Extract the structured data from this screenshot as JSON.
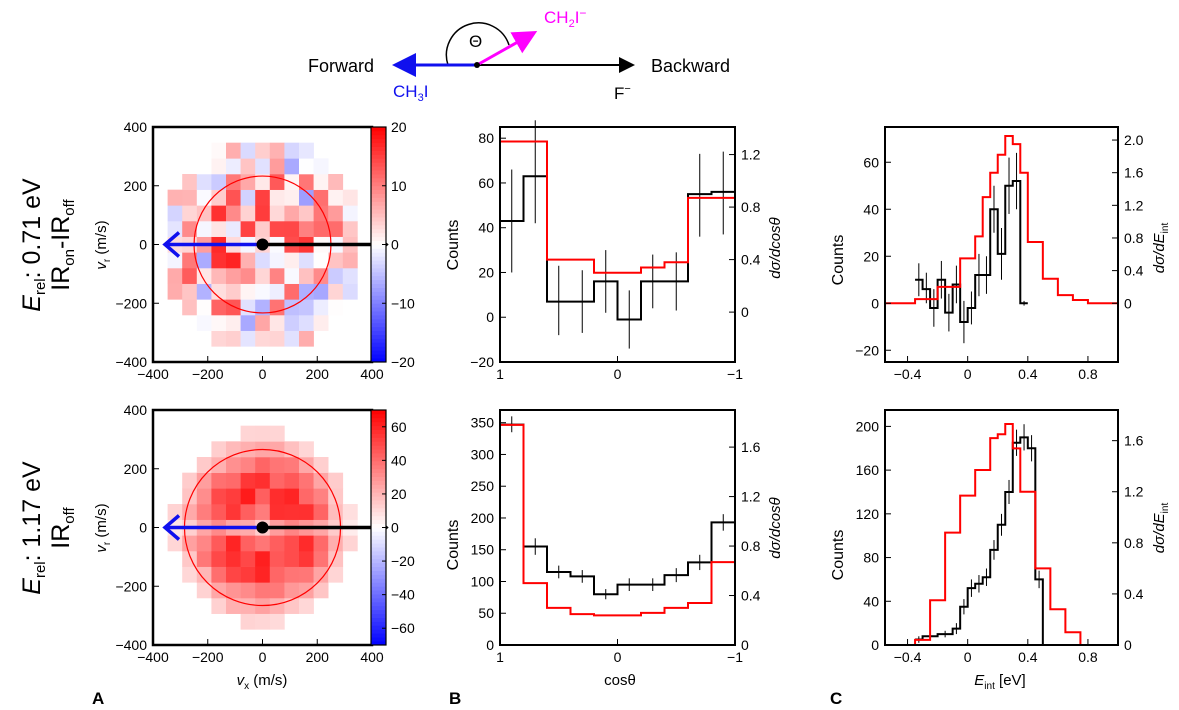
{
  "diagram": {
    "forward": "Forward",
    "backward": "Backward",
    "theta": "Θ",
    "ch3i": [
      "CH",
      "3",
      "I"
    ],
    "ch2i": [
      "CH",
      "2",
      "I",
      "−"
    ],
    "f": [
      "F",
      "−"
    ],
    "colors": {
      "blue": "#1010ee",
      "magenta": "#ff00ff",
      "black": "#000000"
    }
  },
  "row_labels": [
    {
      "energy": [
        "E",
        "rel",
        ": 0.71 eV"
      ],
      "condition": [
        "IR",
        "on",
        "-IR",
        "off"
      ]
    },
    {
      "energy": [
        "E",
        "rel",
        ": 1.17 eV"
      ],
      "condition": [
        "IR",
        "off"
      ]
    }
  ],
  "panel_labels": [
    "A",
    "B",
    "C"
  ],
  "axis_text": {
    "vx": [
      "v",
      "x",
      " (m/s)"
    ],
    "vr": [
      "v",
      "r",
      " (m/s)"
    ],
    "counts": "Counts",
    "dsigma_dcos": "dσ/dcosθ",
    "costheta": "cosθ",
    "dsigma_dE": [
      "dσ/dE",
      "int"
    ],
    "eint": [
      "E",
      "int",
      " [eV]"
    ]
  },
  "chart_data": [
    {
      "type": "heatmap",
      "id": "A-top",
      "title": "",
      "x_range": [
        -400,
        400
      ],
      "y_range": [
        -400,
        400
      ],
      "x_ticks": [
        -400,
        -200,
        0,
        200,
        400
      ],
      "y_ticks": [
        -400,
        -200,
        0,
        200,
        400
      ],
      "colorbar": {
        "range": [
          -20,
          20
        ],
        "ticks": [
          20,
          10,
          0,
          -10,
          -20
        ],
        "scale": "blue-white-red"
      },
      "circle_radius": 250,
      "arrows": {
        "forward_color": "#1010ee",
        "backward_color": "#000000"
      }
    },
    {
      "type": "heatmap",
      "id": "A-bottom",
      "title": "",
      "x_range": [
        -400,
        400
      ],
      "y_range": [
        -400,
        400
      ],
      "x_ticks": [
        -400,
        -200,
        0,
        200,
        400
      ],
      "y_ticks": [
        -400,
        -200,
        0,
        200,
        400
      ],
      "colorbar": {
        "range": [
          -70,
          70
        ],
        "ticks": [
          60,
          40,
          20,
          0,
          -20,
          -40,
          -60
        ],
        "scale": "blue-white-red"
      },
      "circle_radius": 285,
      "arrows": {
        "forward_color": "#1010ee",
        "backward_color": "#000000"
      }
    },
    {
      "type": "line",
      "id": "B-top",
      "step": true,
      "x_reversed": true,
      "x_range": [
        1,
        -1
      ],
      "y_range": [
        -20,
        85
      ],
      "x_ticks": [
        1,
        0,
        -1
      ],
      "y_ticks": [
        80,
        60,
        40,
        20,
        0,
        -20
      ],
      "right_range": [
        -0.38,
        1.41
      ],
      "right_ticks": [
        0,
        0.4,
        0.8,
        1.2
      ],
      "series": [
        {
          "color": "#000000",
          "bins": [
            [
              1,
              0.8,
              43
            ],
            [
              0.8,
              0.6,
              63
            ],
            [
              0.6,
              0.4,
              7
            ],
            [
              0.4,
              0.2,
              7
            ],
            [
              0.2,
              0,
              16
            ],
            [
              0,
              -0.2,
              -1
            ],
            [
              -0.2,
              -0.4,
              16
            ],
            [
              -0.4,
              -0.6,
              16
            ],
            [
              -0.6,
              -0.8,
              55
            ],
            [
              -0.8,
              -1,
              56
            ]
          ],
          "errors": [
            [
              0.9,
              20,
              66
            ],
            [
              0.7,
              42,
              88
            ],
            [
              0.5,
              -8,
              23
            ],
            [
              0.3,
              -7,
              21
            ],
            [
              0.1,
              2,
              30
            ],
            [
              -0.1,
              -14,
              12
            ],
            [
              -0.3,
              4,
              28
            ],
            [
              -0.5,
              3,
              29
            ],
            [
              -0.7,
              36,
              73
            ],
            [
              -0.9,
              37,
              74
            ]
          ]
        },
        {
          "color": "#ff0000",
          "axis": "right",
          "bins": [
            [
              1,
              0.8,
              1.3
            ],
            [
              0.8,
              0.6,
              1.3
            ],
            [
              0.6,
              0.4,
              0.4
            ],
            [
              0.4,
              0.2,
              0.4
            ],
            [
              0.2,
              0,
              0.3
            ],
            [
              0,
              -0.2,
              0.3
            ],
            [
              -0.2,
              -0.4,
              0.34
            ],
            [
              -0.4,
              -0.6,
              0.38
            ],
            [
              -0.6,
              -0.8,
              0.87
            ],
            [
              -0.8,
              -1,
              0.87
            ]
          ]
        }
      ]
    },
    {
      "type": "line",
      "id": "B-bottom",
      "step": true,
      "x_reversed": true,
      "x_range": [
        1,
        -1
      ],
      "y_range": [
        0,
        370
      ],
      "x_ticks": [
        1,
        0,
        -1
      ],
      "y_ticks": [
        350,
        300,
        250,
        200,
        150,
        100,
        50,
        0
      ],
      "right_range": [
        0,
        1.9
      ],
      "right_ticks": [
        0,
        0.4,
        0.8,
        1.2,
        1.6
      ],
      "series": [
        {
          "color": "#000000",
          "bins": [
            [
              1,
              0.8,
              347
            ],
            [
              0.8,
              0.6,
              155
            ],
            [
              0.6,
              0.4,
              115
            ],
            [
              0.4,
              0.2,
              108
            ],
            [
              0.2,
              0,
              80
            ],
            [
              0,
              -0.2,
              95
            ],
            [
              -0.2,
              -0.4,
              95
            ],
            [
              -0.4,
              -0.6,
              110
            ],
            [
              -0.6,
              -0.8,
              130
            ],
            [
              -0.8,
              -1,
              193
            ]
          ],
          "errors": [
            [
              0.9,
              335,
              360
            ],
            [
              0.7,
              142,
              168
            ],
            [
              0.5,
              105,
              125
            ],
            [
              0.3,
              98,
              118
            ],
            [
              0.1,
              72,
              88
            ],
            [
              -0.1,
              85,
              105
            ],
            [
              -0.3,
              85,
              105
            ],
            [
              -0.5,
              99,
              121
            ],
            [
              -0.7,
              118,
              142
            ],
            [
              -0.9,
              180,
              206
            ]
          ]
        },
        {
          "color": "#ff0000",
          "axis": "right",
          "bins": [
            [
              1,
              0.8,
              1.78
            ],
            [
              0.8,
              0.6,
              0.5
            ],
            [
              0.6,
              0.4,
              0.3
            ],
            [
              0.4,
              0.2,
              0.25
            ],
            [
              0.2,
              0,
              0.24
            ],
            [
              0,
              -0.2,
              0.24
            ],
            [
              -0.2,
              -0.4,
              0.26
            ],
            [
              -0.4,
              -0.6,
              0.3
            ],
            [
              -0.6,
              -0.8,
              0.34
            ],
            [
              -0.8,
              -1,
              0.67
            ]
          ]
        }
      ]
    },
    {
      "type": "line",
      "id": "C-top",
      "step": true,
      "x_range": [
        -0.55,
        1
      ],
      "y_range": [
        -25,
        75
      ],
      "x_ticks": [
        -0.4,
        0,
        0.4,
        0.8
      ],
      "y_ticks": [
        60,
        40,
        20,
        0,
        -20
      ],
      "right_range": [
        -0.72,
        2.16
      ],
      "right_ticks": [
        0,
        0.4,
        0.8,
        1.2,
        1.6,
        2.0
      ],
      "series": [
        {
          "color": "#000000",
          "bins": [
            [
              -0.35,
              -0.3,
              10
            ],
            [
              -0.3,
              -0.25,
              6
            ],
            [
              -0.25,
              -0.2,
              -2
            ],
            [
              -0.2,
              -0.15,
              10
            ],
            [
              -0.15,
              -0.1,
              -4
            ],
            [
              -0.1,
              -0.05,
              8
            ],
            [
              -0.05,
              0,
              -8
            ],
            [
              0,
              0.05,
              -2
            ],
            [
              0.05,
              0.1,
              12
            ],
            [
              0.1,
              0.15,
              12
            ],
            [
              0.15,
              0.2,
              40
            ],
            [
              0.2,
              0.25,
              21
            ],
            [
              0.25,
              0.3,
              50
            ],
            [
              0.3,
              0.35,
              52
            ],
            [
              0.35,
              0.4,
              0
            ]
          ],
          "errors": [
            [
              -0.325,
              3,
              17
            ],
            [
              -0.275,
              0,
              13
            ],
            [
              -0.225,
              -10,
              6
            ],
            [
              -0.175,
              2,
              18
            ],
            [
              -0.125,
              -12,
              4
            ],
            [
              -0.075,
              0,
              16
            ],
            [
              -0.025,
              -17,
              1
            ],
            [
              0.025,
              -9,
              5
            ],
            [
              0.075,
              3,
              21
            ],
            [
              0.125,
              4,
              20
            ],
            [
              0.175,
              30,
              50
            ],
            [
              0.225,
              10,
              32
            ],
            [
              0.275,
              38,
              62
            ],
            [
              0.325,
              40,
              64
            ],
            [
              0.375,
              -1,
              1
            ]
          ]
        },
        {
          "color": "#ff0000",
          "axis": "right",
          "bins": [
            [
              -0.55,
              -0.35,
              0
            ],
            [
              -0.35,
              -0.2,
              0.05
            ],
            [
              -0.2,
              -0.05,
              0.2
            ],
            [
              -0.05,
              0.05,
              0.55
            ],
            [
              0.05,
              0.1,
              0.82
            ],
            [
              0.1,
              0.15,
              1.3
            ],
            [
              0.15,
              0.2,
              1.6
            ],
            [
              0.2,
              0.25,
              1.82
            ],
            [
              0.25,
              0.3,
              2.05
            ],
            [
              0.3,
              0.35,
              1.95
            ],
            [
              0.35,
              0.4,
              1.6
            ],
            [
              0.4,
              0.5,
              0.75
            ],
            [
              0.5,
              0.6,
              0.3
            ],
            [
              0.6,
              0.7,
              0.1
            ],
            [
              0.7,
              0.8,
              0.04
            ],
            [
              0.8,
              1,
              0
            ]
          ]
        }
      ]
    },
    {
      "type": "line",
      "id": "C-bottom",
      "step": true,
      "x_range": [
        -0.55,
        1
      ],
      "y_range": [
        0,
        215
      ],
      "x_ticks": [
        -0.4,
        0,
        0.4,
        0.8
      ],
      "y_ticks": [
        200,
        160,
        120,
        80,
        40,
        0
      ],
      "right_range": [
        0,
        1.84
      ],
      "right_ticks": [
        0,
        0.4,
        0.8,
        1.2,
        1.6
      ],
      "series": [
        {
          "color": "#000000",
          "bins": [
            [
              -0.35,
              -0.3,
              5
            ],
            [
              -0.3,
              -0.2,
              8
            ],
            [
              -0.2,
              -0.1,
              10
            ],
            [
              -0.1,
              -0.05,
              15
            ],
            [
              -0.05,
              0,
              35
            ],
            [
              0,
              0.05,
              52
            ],
            [
              0.05,
              0.1,
              56
            ],
            [
              0.1,
              0.15,
              62
            ],
            [
              0.15,
              0.2,
              87
            ],
            [
              0.2,
              0.25,
              110
            ],
            [
              0.25,
              0.3,
              140
            ],
            [
              0.3,
              0.35,
              185
            ],
            [
              0.35,
              0.4,
              190
            ],
            [
              0.4,
              0.45,
              180
            ],
            [
              0.45,
              0.5,
              60
            ],
            [
              0.5,
              0.55,
              0
            ]
          ],
          "errors": [
            [
              -0.325,
              2,
              8
            ],
            [
              -0.25,
              5,
              11
            ],
            [
              -0.15,
              7,
              13
            ],
            [
              -0.075,
              10,
              20
            ],
            [
              -0.025,
              28,
              42
            ],
            [
              0.025,
              44,
              60
            ],
            [
              0.075,
              48,
              64
            ],
            [
              0.125,
              54,
              70
            ],
            [
              0.175,
              78,
              96
            ],
            [
              0.225,
              100,
              120
            ],
            [
              0.275,
              129,
              151
            ],
            [
              0.325,
              173,
              197
            ],
            [
              0.375,
              178,
              202
            ],
            [
              0.425,
              168,
              192
            ],
            [
              0.475,
              52,
              68
            ]
          ]
        },
        {
          "color": "#ff0000",
          "axis": "right",
          "bins": [
            [
              -0.55,
              -0.35,
              0
            ],
            [
              -0.35,
              -0.25,
              0.04
            ],
            [
              -0.25,
              -0.15,
              0.35
            ],
            [
              -0.15,
              -0.05,
              0.88
            ],
            [
              -0.05,
              0.05,
              1.17
            ],
            [
              0.05,
              0.15,
              1.37
            ],
            [
              0.15,
              0.2,
              1.62
            ],
            [
              0.2,
              0.25,
              1.65
            ],
            [
              0.25,
              0.3,
              1.73
            ],
            [
              0.3,
              0.35,
              1.54
            ],
            [
              0.35,
              0.45,
              1.2
            ],
            [
              0.45,
              0.55,
              0.6
            ],
            [
              0.55,
              0.65,
              0.28
            ],
            [
              0.65,
              0.75,
              0.1
            ],
            [
              0.75,
              1,
              0
            ]
          ]
        }
      ]
    }
  ]
}
